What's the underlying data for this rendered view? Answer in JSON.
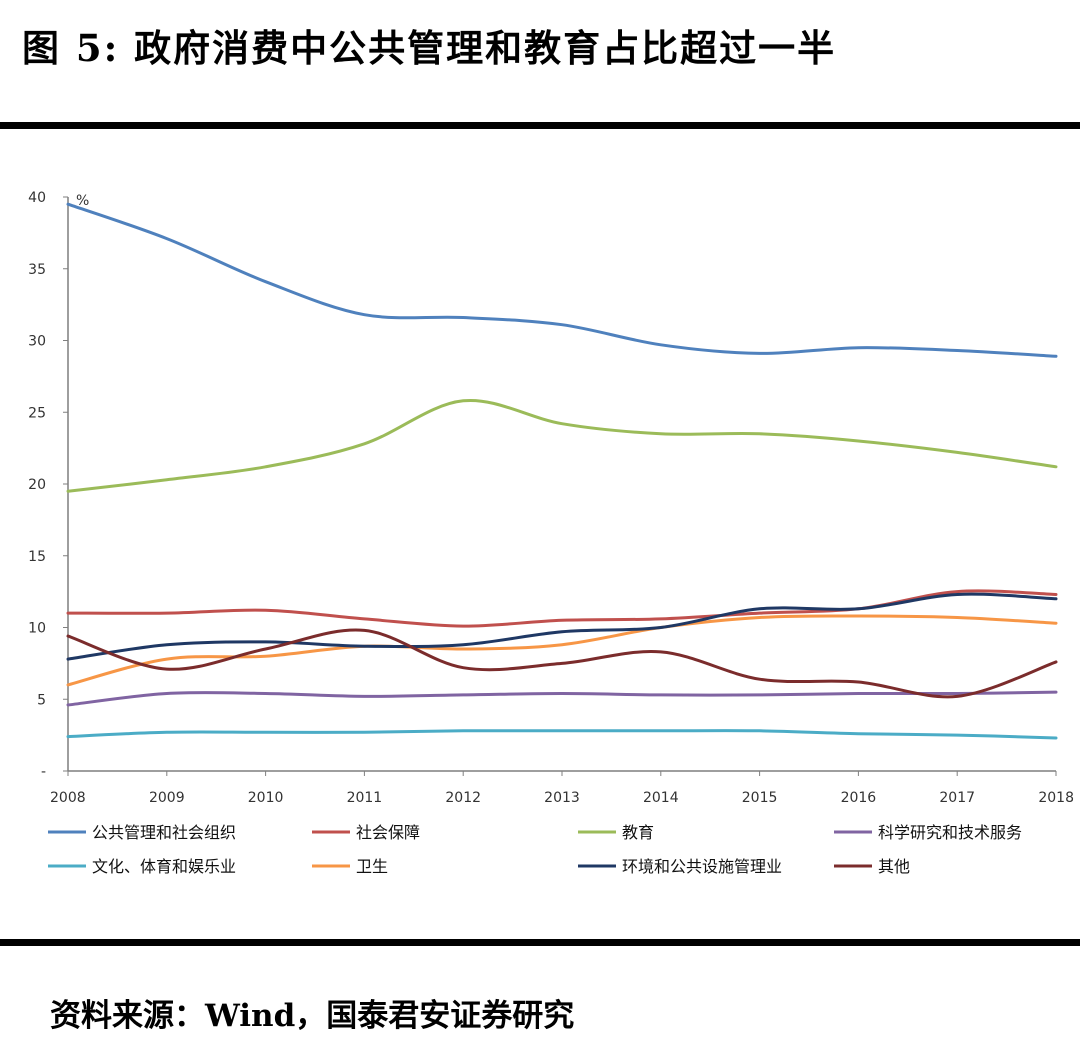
{
  "figure": {
    "title": "图 5:  政府消费中公共管理和教育占比超过一半",
    "source": "资料来源：Wind，国泰君安证券研究"
  },
  "chart_data": {
    "type": "line",
    "x": [
      "2008",
      "2009",
      "2010",
      "2011",
      "2012",
      "2013",
      "2014",
      "2015",
      "2016",
      "2017",
      "2018"
    ],
    "ylim": [
      0,
      40
    ],
    "y_ticks": [
      "-",
      "5",
      "10",
      "15",
      "20",
      "25",
      "30",
      "35",
      "40"
    ],
    "y_unit": "%",
    "grid": false,
    "legend_position": "bottom",
    "series": [
      {
        "name": "公共管理和社会组织",
        "color": "#4f81bd",
        "values": [
          39.5,
          37.1,
          34.1,
          31.8,
          31.6,
          31.1,
          29.7,
          29.1,
          29.5,
          29.3,
          28.9
        ]
      },
      {
        "name": "社会保障",
        "color": "#c0504d",
        "values": [
          11.0,
          11.0,
          11.2,
          10.6,
          10.1,
          10.5,
          10.6,
          11.0,
          11.3,
          12.5,
          12.3
        ]
      },
      {
        "name": "教育",
        "color": "#9bbb59",
        "values": [
          19.5,
          20.3,
          21.2,
          22.8,
          25.8,
          24.2,
          23.5,
          23.5,
          23.0,
          22.2,
          21.2
        ]
      },
      {
        "name": "科学研究和技术服务",
        "color": "#8064a2",
        "values": [
          4.6,
          5.4,
          5.4,
          5.2,
          5.3,
          5.4,
          5.3,
          5.3,
          5.4,
          5.4,
          5.5
        ]
      },
      {
        "name": "文化、体育和娱乐业",
        "color": "#4bacc6",
        "values": [
          2.4,
          2.7,
          2.7,
          2.7,
          2.8,
          2.8,
          2.8,
          2.8,
          2.6,
          2.5,
          2.3
        ]
      },
      {
        "name": "卫生",
        "color": "#f79646",
        "values": [
          6.0,
          7.8,
          8.0,
          8.7,
          8.5,
          8.8,
          10.0,
          10.7,
          10.8,
          10.7,
          10.3
        ]
      },
      {
        "name": "环境和公共设施管理业",
        "color": "#1f3864",
        "values": [
          7.8,
          8.8,
          9.0,
          8.7,
          8.8,
          9.7,
          10.0,
          11.3,
          11.3,
          12.3,
          12.0
        ]
      },
      {
        "name": "其他",
        "color": "#7b2c2c",
        "values": [
          9.4,
          7.1,
          8.5,
          9.8,
          7.2,
          7.5,
          8.3,
          6.4,
          6.2,
          5.2,
          7.6
        ]
      }
    ]
  }
}
